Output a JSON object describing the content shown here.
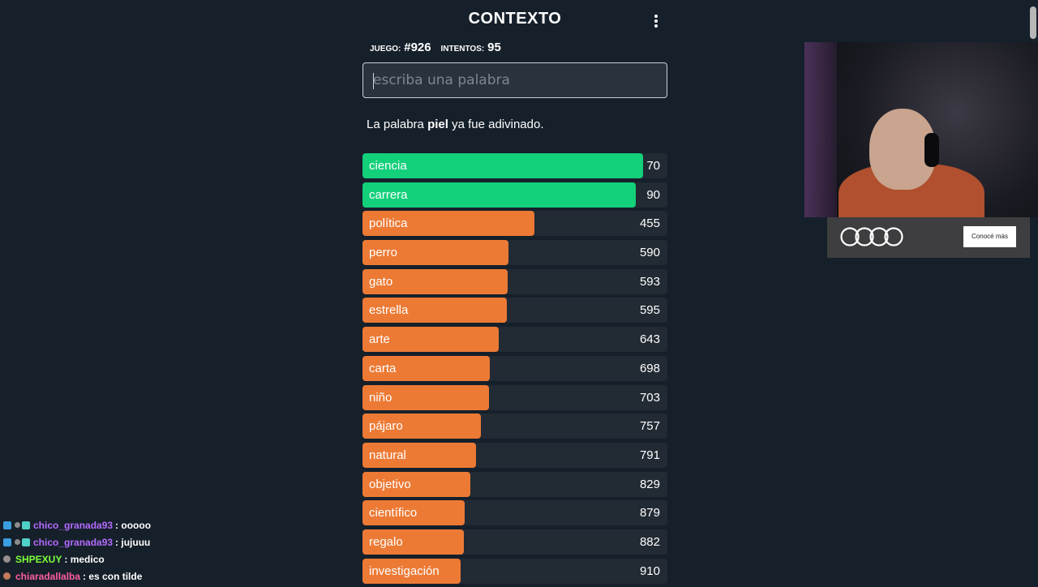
{
  "header": {
    "title": "CONTEXTO"
  },
  "stats": {
    "game_label": "JUEGO:",
    "game_value": "#926",
    "attempts_label": "INTENTOS:",
    "attempts_value": "95"
  },
  "input": {
    "placeholder": "escriba una palabra",
    "value": ""
  },
  "message": {
    "prefix": "La palabra ",
    "word": "piel",
    "suffix": " ya fue adivinado."
  },
  "colors": {
    "green": "#13d07a",
    "orange": "#ec7a35",
    "row_bg": "#222a33",
    "page_bg": "#16202b"
  },
  "guesses": [
    {
      "word": "ciencia",
      "distance": "70",
      "color": "green",
      "fill": 0.92
    },
    {
      "word": "carrera",
      "distance": "90",
      "color": "green",
      "fill": 0.895
    },
    {
      "word": "política",
      "distance": "455",
      "color": "orange",
      "fill": 0.565
    },
    {
      "word": "perro",
      "distance": "590",
      "color": "orange",
      "fill": 0.478
    },
    {
      "word": "gato",
      "distance": "593",
      "color": "orange",
      "fill": 0.476
    },
    {
      "word": "estrella",
      "distance": "595",
      "color": "orange",
      "fill": 0.474
    },
    {
      "word": "arte",
      "distance": "643",
      "color": "orange",
      "fill": 0.447
    },
    {
      "word": "carta",
      "distance": "698",
      "color": "orange",
      "fill": 0.418
    },
    {
      "word": "niño",
      "distance": "703",
      "color": "orange",
      "fill": 0.416
    },
    {
      "word": "pájaro",
      "distance": "757",
      "color": "orange",
      "fill": 0.388
    },
    {
      "word": "natural",
      "distance": "791",
      "color": "orange",
      "fill": 0.373
    },
    {
      "word": "objetivo",
      "distance": "829",
      "color": "orange",
      "fill": 0.354
    },
    {
      "word": "científico",
      "distance": "879",
      "color": "orange",
      "fill": 0.334
    },
    {
      "word": "regalo",
      "distance": "882",
      "color": "orange",
      "fill": 0.333
    },
    {
      "word": "investigación",
      "distance": "910",
      "color": "orange",
      "fill": 0.322
    }
  ],
  "ad": {
    "cta_label": "Conocé más"
  },
  "chat": [
    {
      "user": "chico_granada93",
      "user_color": "#b36bff",
      "text": ": ooooo",
      "badges": [
        "prime",
        "mod",
        "sub"
      ]
    },
    {
      "user": "chico_granada93",
      "user_color": "#b36bff",
      "text": ": jujuuu",
      "badges": [
        "prime",
        "mod",
        "sub"
      ]
    },
    {
      "user": "SHPEXUY",
      "user_color": "#7cff3a",
      "text": ": medico",
      "badges": [
        "gray"
      ]
    },
    {
      "user": "chiaradallalba",
      "user_color": "#ff5fa2",
      "text": ": es con tilde",
      "badges": [
        "round"
      ]
    }
  ]
}
